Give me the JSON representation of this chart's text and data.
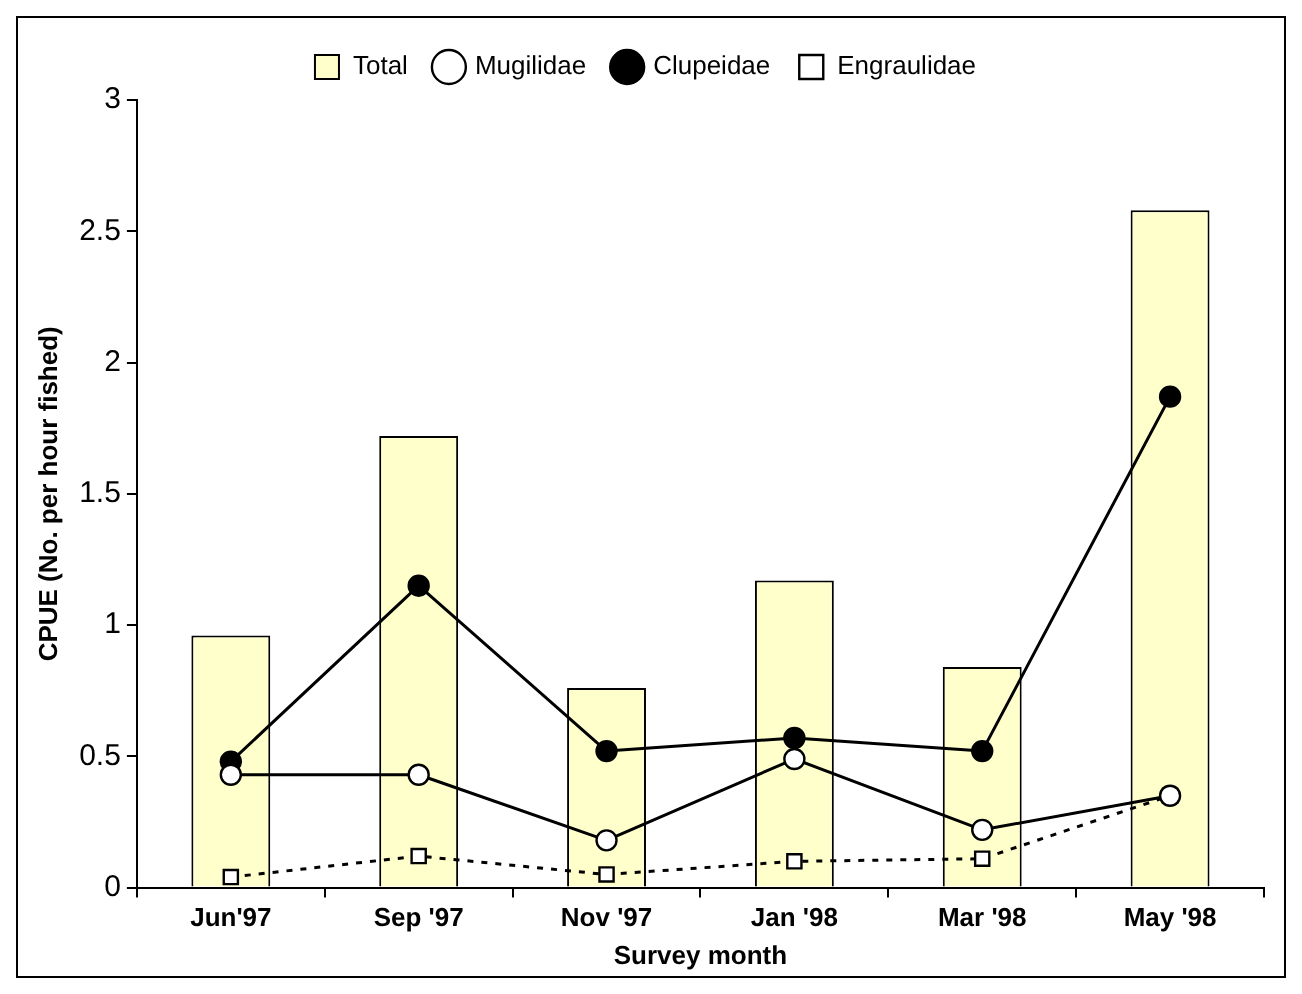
{
  "chart_data": {
    "type": "bar",
    "xlabel": "Survey month",
    "ylabel": "CPUE (No. per hour fished)",
    "categories": [
      "Jun'97",
      "Sep '97",
      "Nov '97",
      "Jan '98",
      "Mar '98",
      "May '98"
    ],
    "series": [
      {
        "name": "Total",
        "color": "#ffffcc",
        "values": [
          0.96,
          1.72,
          0.76,
          1.17,
          0.84,
          2.58
        ]
      },
      {
        "name": "Mugilidae",
        "type": "line",
        "color": "#ffffff",
        "marker": "circle",
        "line_style": "solid",
        "values": [
          0.43,
          0.43,
          0.18,
          0.49,
          0.22,
          0.35
        ]
      },
      {
        "name": "Clupeidae",
        "type": "line",
        "color": "#000000",
        "marker": "circle",
        "line_style": "solid",
        "values": [
          0.48,
          1.15,
          0.52,
          0.57,
          0.52,
          1.87
        ]
      },
      {
        "name": "Engraulidae",
        "type": "line",
        "color": "#ffffff",
        "marker": "square",
        "line_style": "dotted",
        "values": [
          0.04,
          0.12,
          0.05,
          0.1,
          0.11,
          0.35
        ]
      }
    ],
    "ylim": [
      0,
      3
    ],
    "yticks": [
      0,
      0.5,
      1,
      1.5,
      2,
      2.5,
      3
    ],
    "grid": false,
    "legend": "top"
  }
}
